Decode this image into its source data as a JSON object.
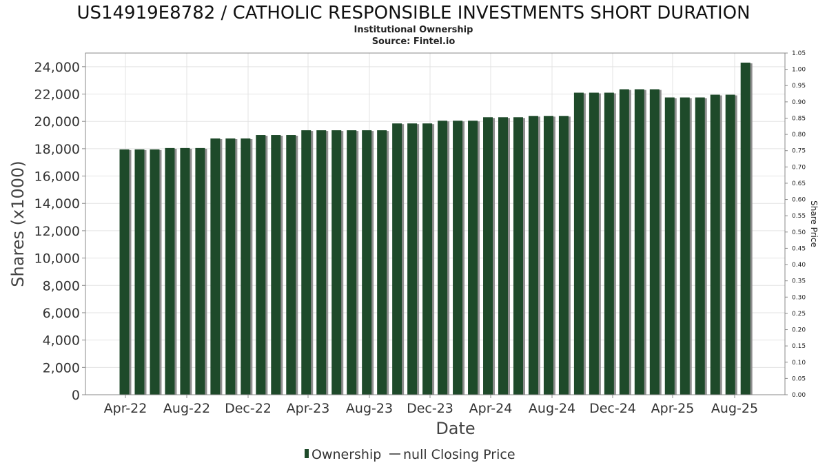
{
  "chart_data": {
    "type": "bar",
    "title": "US14919E8782 / CATHOLIC RESPONSIBLE INVESTMENTS SHORT DURATION",
    "subtitle": "Institutional Ownership",
    "source": "Source: Fintel.io",
    "xlabel": "Date",
    "ylabel": "Shares (x1000)",
    "y2label": "Share Price",
    "ylim": [
      0,
      25000
    ],
    "y2lim": [
      0,
      1.05
    ],
    "yticks": [
      0,
      2000,
      4000,
      6000,
      8000,
      10000,
      12000,
      14000,
      16000,
      18000,
      20000,
      22000,
      24000
    ],
    "ytick_labels": [
      "0",
      "2,000",
      "4,000",
      "6,000",
      "8,000",
      "10,000",
      "12,000",
      "14,000",
      "16,000",
      "18,000",
      "20,000",
      "22,000",
      "24,000"
    ],
    "y2tick_labels": [
      "0.00",
      "0.05",
      "0.10",
      "0.15",
      "0.20",
      "0.25",
      "0.30",
      "0.35",
      "0.40",
      "0.45",
      "0.50",
      "0.55",
      "0.60",
      "0.65",
      "0.70",
      "0.75",
      "0.80",
      "0.85",
      "0.90",
      "0.95",
      "1.00",
      "1.05"
    ],
    "xtick_labels": [
      "Apr-22",
      "Aug-22",
      "Dec-22",
      "Apr-23",
      "Aug-23",
      "Dec-23",
      "Apr-24",
      "Aug-24",
      "Dec-24",
      "Apr-25",
      "Aug-25"
    ],
    "grid": true,
    "legend_position": "bottom",
    "legend": [
      "Ownership",
      "null Closing Price"
    ],
    "colors": {
      "bar": "#1e4a2a",
      "bar_shadow": "#8f8f8f",
      "grid": "#e3e3e3",
      "axis": "#888888"
    },
    "series": [
      {
        "name": "Ownership",
        "values": [
          17950,
          17950,
          17950,
          18050,
          18050,
          18050,
          18750,
          18750,
          18750,
          19000,
          19000,
          19000,
          19350,
          19350,
          19350,
          19350,
          19350,
          19350,
          19850,
          19850,
          19850,
          20050,
          20050,
          20050,
          20300,
          20300,
          20300,
          20400,
          20400,
          20400,
          22100,
          22100,
          22100,
          22350,
          22350,
          22350,
          21750,
          21750,
          21750,
          21950,
          21950,
          24300
        ]
      }
    ]
  }
}
